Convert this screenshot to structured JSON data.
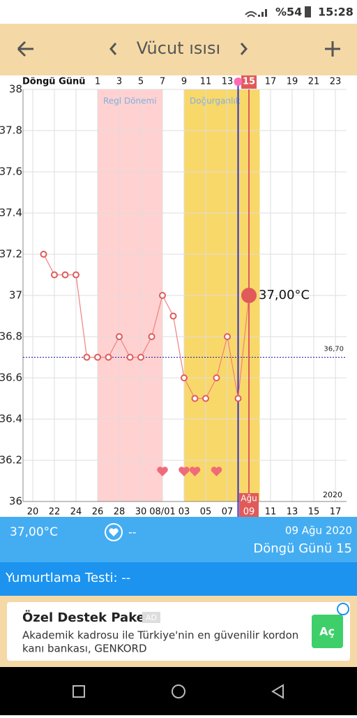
{
  "status_bar": {
    "battery": "%54",
    "time": "15:28"
  },
  "header": {
    "title": "Vücut ısısı"
  },
  "chart_data": {
    "type": "line",
    "categories": [
      "20",
      null,
      "22",
      null,
      "24",
      null,
      "26",
      null,
      "28",
      null,
      "30",
      null,
      "08/01",
      null,
      "03",
      null,
      "05",
      null,
      "07",
      null,
      "09",
      null,
      "11",
      null,
      "13",
      null,
      "15",
      null,
      "17"
    ],
    "cycle_day_title": "Döngü Günü",
    "cycle_day_labels": [
      null,
      null,
      null,
      null,
      null,
      null,
      "1",
      null,
      "3",
      null,
      "5",
      null,
      "7",
      null,
      "9",
      null,
      "11",
      null,
      "13",
      null,
      "15",
      null,
      "17",
      null,
      "19",
      null,
      "21",
      null,
      "23"
    ],
    "series": [
      {
        "color": "#f08080",
        "values": [
          null,
          37.2,
          37.1,
          37.1,
          37.1,
          36.7,
          36.7,
          36.7,
          36.8,
          36.7,
          36.7,
          36.8,
          37.0,
          36.9,
          36.6,
          36.5,
          36.5,
          36.6,
          36.8,
          36.5,
          37.0,
          null,
          null,
          null,
          null,
          null,
          null,
          null,
          null
        ],
        "value_labels": [
          null,
          null,
          null,
          null,
          null,
          null,
          null,
          null,
          null,
          null,
          null,
          null,
          null,
          null,
          null,
          null,
          null,
          null,
          null,
          null,
          "37,00°C",
          null,
          null,
          null,
          null,
          null,
          null,
          null,
          null
        ]
      }
    ],
    "ylim": [
      36,
      38
    ],
    "yticks": [
      36,
      36.2,
      36.4,
      36.6,
      36.8,
      37,
      37.2,
      37.4,
      37.6,
      37.8,
      38
    ],
    "grid": true,
    "reference_line": {
      "value": 36.7,
      "label": "36,70"
    },
    "bands": [
      {
        "label": "Regl Dönemi",
        "start": 6,
        "end": 12,
        "color": "#ffd1d1"
      },
      {
        "label": "Doğurganlık",
        "start": 14,
        "end": 21,
        "color": "#f9d86a"
      }
    ],
    "heart_days": [
      12,
      14,
      15,
      17
    ],
    "marker_index": 19,
    "selected_index": 20,
    "selected_month": "Ağu",
    "year": "2020"
  },
  "info_panel": {
    "temperature": "37,00°C",
    "note": "--",
    "date": "09 Ağu 2020",
    "cycle_day": "Döngü Günü 15"
  },
  "ovulation_bar": {
    "text": "Yumurtlama Testi: --"
  },
  "ad": {
    "title": "Özel Destek Paketi",
    "badge": "AD",
    "line1": "Akademik kadrosu ile Türkiye'nin en güvenilir kordon",
    "line2": "kanı bankası, GENKORD",
    "button": "Aç"
  }
}
